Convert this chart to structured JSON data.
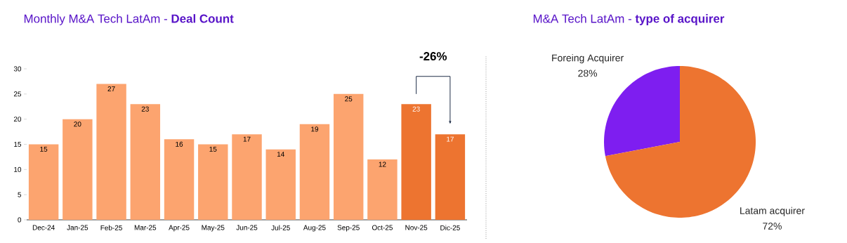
{
  "chart_data": [
    {
      "type": "bar",
      "title": "Monthly M&A Tech LatAm - **Deal Count**",
      "categories": [
        "Dec-24",
        "Jan-25",
        "Feb-25",
        "Mar-25",
        "Apr-25",
        "May-25",
        "Jun-25",
        "Jul-25",
        "Aug-25",
        "Sep-25",
        "Oct-25",
        "Nov-25",
        "Dic-25"
      ],
      "values": [
        15,
        20,
        27,
        23,
        16,
        15,
        17,
        14,
        19,
        25,
        12,
        23,
        17
      ],
      "colors": [
        "#fca46f",
        "#fca46f",
        "#fca46f",
        "#fca46f",
        "#fca46f",
        "#fca46f",
        "#fca46f",
        "#fca46f",
        "#fca46f",
        "#fca46f",
        "#fca46f",
        "#ed7430",
        "#ed7430"
      ],
      "ylim": [
        0,
        30
      ],
      "yticks": [
        0,
        5,
        10,
        15,
        20,
        25,
        30
      ],
      "data_labels": true,
      "annotations": [
        "-26%"
      ]
    },
    {
      "type": "pie",
      "title": "M&A Tech LatAm -  **type of acquirer**",
      "categories": [
        "Foreing Acquirer",
        "Latam acquirer"
      ],
      "values": [
        28,
        72
      ],
      "colors": [
        "#7e1ef0",
        "#ed7430"
      ],
      "value_labels": [
        "28%",
        "72%"
      ]
    }
  ]
}
